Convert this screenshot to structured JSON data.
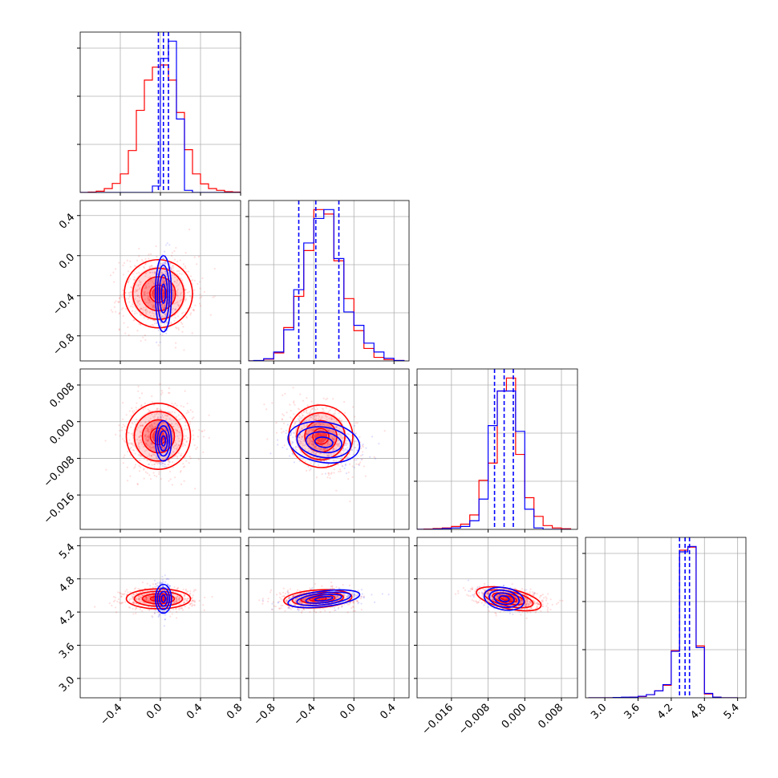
{
  "chart_data": {
    "type": "corner",
    "title": "",
    "parameters": 4,
    "grid": true,
    "colors": {
      "set_a": "#0000ff",
      "set_b": "#ff0000"
    },
    "ranges": [
      [
        -0.8,
        0.8
      ],
      [
        -1.05,
        0.55
      ],
      [
        -0.0235,
        0.0115
      ],
      [
        2.65,
        5.55
      ]
    ],
    "ticks": [
      [
        "−0.4",
        "0.0",
        "0.4",
        "0.8"
      ],
      [
        "−0.8",
        "−0.4",
        "0.0",
        "0.4"
      ],
      [
        "−0.016",
        "−0.008",
        "0.000",
        "0.008"
      ],
      [
        "3.0",
        "3.6",
        "4.2",
        "4.8",
        "5.4"
      ]
    ],
    "tick_values": [
      [
        -0.4,
        0.0,
        0.4,
        0.8
      ],
      [
        -0.8,
        -0.4,
        0.0,
        0.4
      ],
      [
        -0.016,
        -0.008,
        0.0,
        0.008
      ],
      [
        3.0,
        3.6,
        4.2,
        4.8,
        5.4
      ]
    ],
    "quantiles": [
      {
        "set": "set_a",
        "values": [
          -0.02,
          0.03,
          0.08
        ]
      },
      {
        "set": "set_a",
        "values": [
          -0.55,
          -0.38,
          -0.15
        ]
      },
      {
        "set": "set_a",
        "values": [
          -0.0066,
          -0.0045,
          -0.0025
        ]
      },
      {
        "set": "set_a",
        "values": [
          4.35,
          4.45,
          4.53
        ]
      }
    ],
    "marginals": [
      {
        "edges": [
          -0.8,
          -0.72,
          -0.64,
          -0.56,
          -0.48,
          -0.4,
          -0.32,
          -0.24,
          -0.16,
          -0.08,
          0.0,
          0.08,
          0.16,
          0.24,
          0.32,
          0.4,
          0.48,
          0.56,
          0.64,
          0.72,
          0.8
        ],
        "set_b": [
          0,
          1,
          3,
          9,
          21,
          43,
          97,
          190,
          260,
          290,
          295,
          260,
          185,
          99,
          43,
          20,
          9,
          5,
          2,
          1
        ],
        "set_a": [
          0,
          0,
          0,
          0,
          0,
          0,
          0,
          0,
          0,
          15,
          310,
          350,
          170,
          5,
          0,
          0,
          0,
          0,
          0,
          0
        ]
      },
      {
        "edges": [
          -1.1,
          -1.0,
          -0.9,
          -0.8,
          -0.7,
          -0.6,
          -0.5,
          -0.4,
          -0.3,
          -0.2,
          -0.1,
          0.0,
          0.1,
          0.2,
          0.3,
          0.4,
          0.5
        ],
        "set_b": [
          0,
          0,
          4,
          18,
          75,
          145,
          248,
          340,
          330,
          225,
          140,
          68,
          28,
          8,
          3,
          1
        ],
        "set_a": [
          0,
          1,
          5,
          20,
          70,
          160,
          265,
          320,
          340,
          230,
          110,
          80,
          40,
          20,
          6,
          1
        ]
      },
      {
        "edges": [
          -0.024,
          -0.022,
          -0.02,
          -0.018,
          -0.016,
          -0.014,
          -0.012,
          -0.01,
          -0.008,
          -0.006,
          -0.004,
          -0.002,
          0.0,
          0.002,
          0.004,
          0.006,
          0.008,
          0.01
        ],
        "set_b": [
          0,
          1,
          3,
          5,
          10,
          18,
          50,
          170,
          230,
          480,
          525,
          260,
          110,
          45,
          13,
          5,
          2
        ],
        "set_a": [
          0,
          0,
          1,
          3,
          5,
          10,
          30,
          105,
          360,
          480,
          480,
          340,
          70,
          5,
          0,
          0,
          0
        ]
      },
      {
        "edges": [
          2.7,
          2.85,
          3.0,
          3.15,
          3.3,
          3.45,
          3.6,
          3.75,
          3.9,
          4.05,
          4.2,
          4.35,
          4.5,
          4.65,
          4.8,
          4.95,
          5.1,
          5.25,
          5.4
        ],
        "set_b": [
          0,
          0,
          0,
          1,
          1,
          2,
          4,
          10,
          22,
          40,
          150,
          470,
          480,
          165,
          12,
          2,
          0,
          0
        ],
        "set_a": [
          0,
          0,
          0,
          1,
          2,
          2,
          5,
          10,
          22,
          42,
          148,
          465,
          482,
          160,
          14,
          2,
          0,
          0
        ]
      }
    ],
    "pairs": [
      {
        "row": 1,
        "col": 0,
        "set_b": {
          "center": [
            -0.02,
            -0.38
          ],
          "sigma": [
            0.17,
            0.17
          ],
          "rho": 0.0
        },
        "set_a": {
          "center": [
            0.03,
            -0.38
          ],
          "sigma": [
            0.04,
            0.19
          ],
          "rho": 0.0
        }
      },
      {
        "row": 2,
        "col": 0,
        "set_b": {
          "center": [
            -0.02,
            -0.0032
          ],
          "sigma": [
            0.16,
            0.0036
          ],
          "rho": 0.0
        },
        "set_a": {
          "center": [
            0.03,
            -0.0042
          ],
          "sigma": [
            0.04,
            0.0022
          ],
          "rho": 0.0
        }
      },
      {
        "row": 2,
        "col": 1,
        "set_b": {
          "center": [
            -0.33,
            -0.0032
          ],
          "sigma": [
            0.16,
            0.0034
          ],
          "rho": -0.45
        },
        "set_a": {
          "center": [
            -0.3,
            -0.0045
          ],
          "sigma": [
            0.18,
            0.0022
          ],
          "rho": -0.25
        }
      },
      {
        "row": 3,
        "col": 0,
        "set_b": {
          "center": [
            -0.02,
            4.44
          ],
          "sigma": [
            0.16,
            0.09
          ],
          "rho": 0.0
        },
        "set_a": {
          "center": [
            0.03,
            4.44
          ],
          "sigma": [
            0.04,
            0.13
          ],
          "rho": 0.0
        }
      },
      {
        "row": 3,
        "col": 1,
        "set_b": {
          "center": [
            -0.36,
            4.44
          ],
          "sigma": [
            0.17,
            0.08
          ],
          "rho": 0.1
        },
        "set_a": {
          "center": [
            -0.3,
            4.44
          ],
          "sigma": [
            0.18,
            0.07
          ],
          "rho": 0.2
        }
      },
      {
        "row": 3,
        "col": 2,
        "set_b": {
          "center": [
            -0.0035,
            4.44
          ],
          "sigma": [
            0.0036,
            0.09
          ],
          "rho": -0.35
        },
        "set_a": {
          "center": [
            -0.0045,
            4.44
          ],
          "sigma": [
            0.0022,
            0.1
          ],
          "rho": -0.3
        }
      }
    ]
  }
}
